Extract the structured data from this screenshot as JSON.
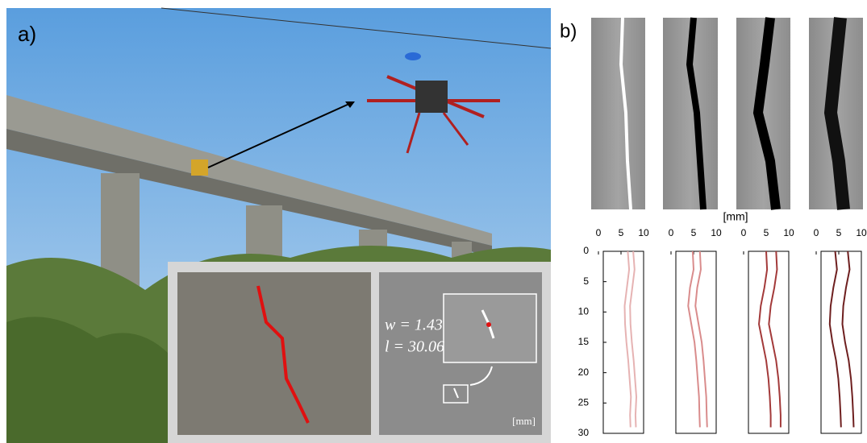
{
  "labels": {
    "panel_a": "a)",
    "panel_b": "b)"
  },
  "inset": {
    "width_label": "w = 1.43",
    "length_label": "l = 30.06",
    "unit": "[mm]"
  },
  "profile_unit": "[mm]",
  "chart_data": [
    {
      "type": "line",
      "x": [
        0,
        3,
        6,
        9,
        12,
        15,
        18,
        21,
        24,
        27,
        29
      ],
      "xlim": [
        0,
        30
      ],
      "xticks": [
        0,
        5,
        10,
        15,
        20,
        25,
        30
      ],
      "ylim": [
        0,
        10
      ],
      "yticks": [
        0,
        5,
        10
      ],
      "series": [
        {
          "color": "#e6b3b3",
          "values": [
            6.5,
            6.8,
            6.3,
            5.8,
            5.9,
            6.2,
            6.6,
            6.9,
            7.2,
            7.0,
            7.1
          ]
        },
        {
          "color": "#e6b3b3",
          "values": [
            7.7,
            8.0,
            7.5,
            7.0,
            7.1,
            7.4,
            7.8,
            8.1,
            8.4,
            8.2,
            8.3
          ]
        }
      ]
    },
    {
      "type": "line",
      "x": [
        0,
        3,
        6,
        9,
        12,
        15,
        18,
        21,
        24,
        27,
        29
      ],
      "xlim": [
        0,
        30
      ],
      "ylim": [
        0,
        10
      ],
      "yticks": [
        0,
        5,
        10
      ],
      "series": [
        {
          "color": "#d98c8c",
          "values": [
            4.8,
            5.0,
            4.2,
            3.8,
            4.5,
            5.2,
            5.6,
            5.9,
            6.2,
            6.3,
            6.4
          ]
        },
        {
          "color": "#d98c8c",
          "values": [
            6.4,
            6.6,
            5.8,
            5.4,
            6.1,
            6.8,
            7.2,
            7.5,
            7.8,
            7.9,
            8.0
          ]
        }
      ]
    },
    {
      "type": "line",
      "x": [
        0,
        3,
        6,
        9,
        12,
        15,
        18,
        21,
        24,
        27,
        29
      ],
      "xlim": [
        0,
        30
      ],
      "ylim": [
        0,
        10
      ],
      "yticks": [
        0,
        5,
        10
      ],
      "series": [
        {
          "color": "#a33a3a",
          "values": [
            5.0,
            5.2,
            4.6,
            3.8,
            3.4,
            4.2,
            5.0,
            5.5,
            5.8,
            6.0,
            6.0
          ]
        },
        {
          "color": "#a33a3a",
          "values": [
            7.2,
            7.4,
            6.8,
            6.0,
            5.6,
            6.4,
            7.2,
            7.7,
            8.0,
            8.2,
            8.2
          ]
        }
      ]
    },
    {
      "type": "line",
      "x": [
        0,
        3,
        6,
        9,
        12,
        15,
        18,
        21,
        24,
        27,
        29
      ],
      "xlim": [
        0,
        30
      ],
      "ylim": [
        0,
        10
      ],
      "yticks": [
        0,
        5,
        10
      ],
      "series": [
        {
          "color": "#6e1f1f",
          "values": [
            4.2,
            4.6,
            3.8,
            3.2,
            3.0,
            3.6,
            4.4,
            4.9,
            5.2,
            5.4,
            5.5
          ]
        },
        {
          "color": "#6e1f1f",
          "values": [
            7.0,
            7.4,
            6.6,
            6.0,
            5.8,
            6.4,
            7.2,
            7.7,
            8.0,
            8.2,
            8.3
          ]
        }
      ]
    }
  ]
}
